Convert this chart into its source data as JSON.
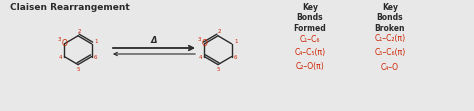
{
  "title": "Claisen Rearrangement",
  "title_fontsize": 6.5,
  "bg_color": "#e8e8e8",
  "molecule_color": "#2a2a2a",
  "number_color": "#cc2200",
  "oxygen_color": "#cc2200",
  "key_bonds_formed_header": "Key\nBonds\nFormed",
  "key_bonds_broken_header": "Key\nBonds\nBroken",
  "bonds_formed": [
    "C₁–C₆",
    "C₄–C₅(π)",
    "C₂–O(π)"
  ],
  "bonds_broken": [
    "C₁–C₂(π)",
    "C₅–C₆(π)",
    "C₄–O"
  ],
  "arrow_label": "Δ",
  "fig_width": 4.74,
  "fig_height": 1.11,
  "dpi": 100
}
